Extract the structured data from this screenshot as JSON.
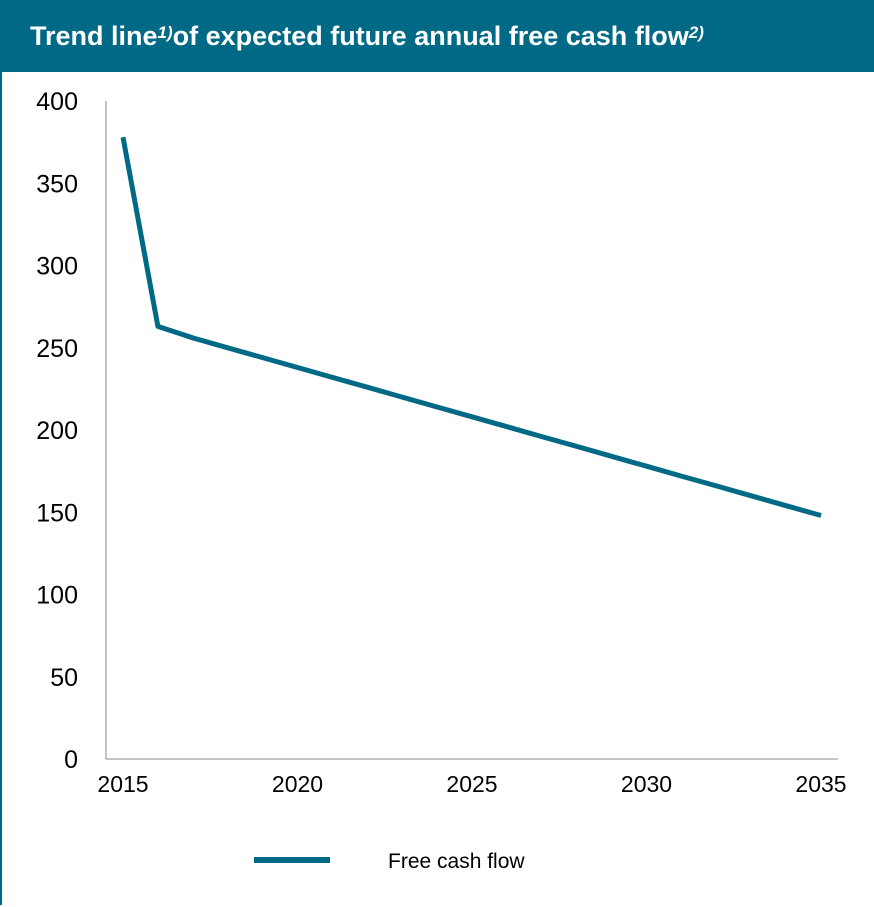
{
  "header": {
    "title_part1": "Trend line",
    "title_sup1": "1)",
    "title_part2": " of expected future annual free cash flow",
    "title_sup2": "2)"
  },
  "chart_data": {
    "type": "line",
    "title": "Trend line1) of expected future annual free cash flow2)",
    "xlabel": "",
    "ylabel": "",
    "xlim": [
      2015,
      2035
    ],
    "ylim": [
      0,
      400
    ],
    "x_ticks": [
      2015,
      2020,
      2025,
      2030,
      2035
    ],
    "y_ticks": [
      0,
      50,
      100,
      150,
      200,
      250,
      300,
      350,
      400
    ],
    "grid": false,
    "legend_position": "bottom",
    "series": [
      {
        "name": "Free cash flow",
        "color": "#006a86",
        "x": [
          2015,
          2016,
          2017,
          2018,
          2019,
          2020,
          2021,
          2022,
          2023,
          2024,
          2025,
          2026,
          2027,
          2028,
          2029,
          2030,
          2031,
          2032,
          2033,
          2034,
          2035
        ],
        "y": [
          378,
          263,
          256,
          250,
          244,
          238,
          232,
          226,
          220,
          214,
          208,
          202,
          196,
          190,
          184,
          178,
          172,
          166,
          160,
          154,
          148
        ]
      }
    ]
  }
}
